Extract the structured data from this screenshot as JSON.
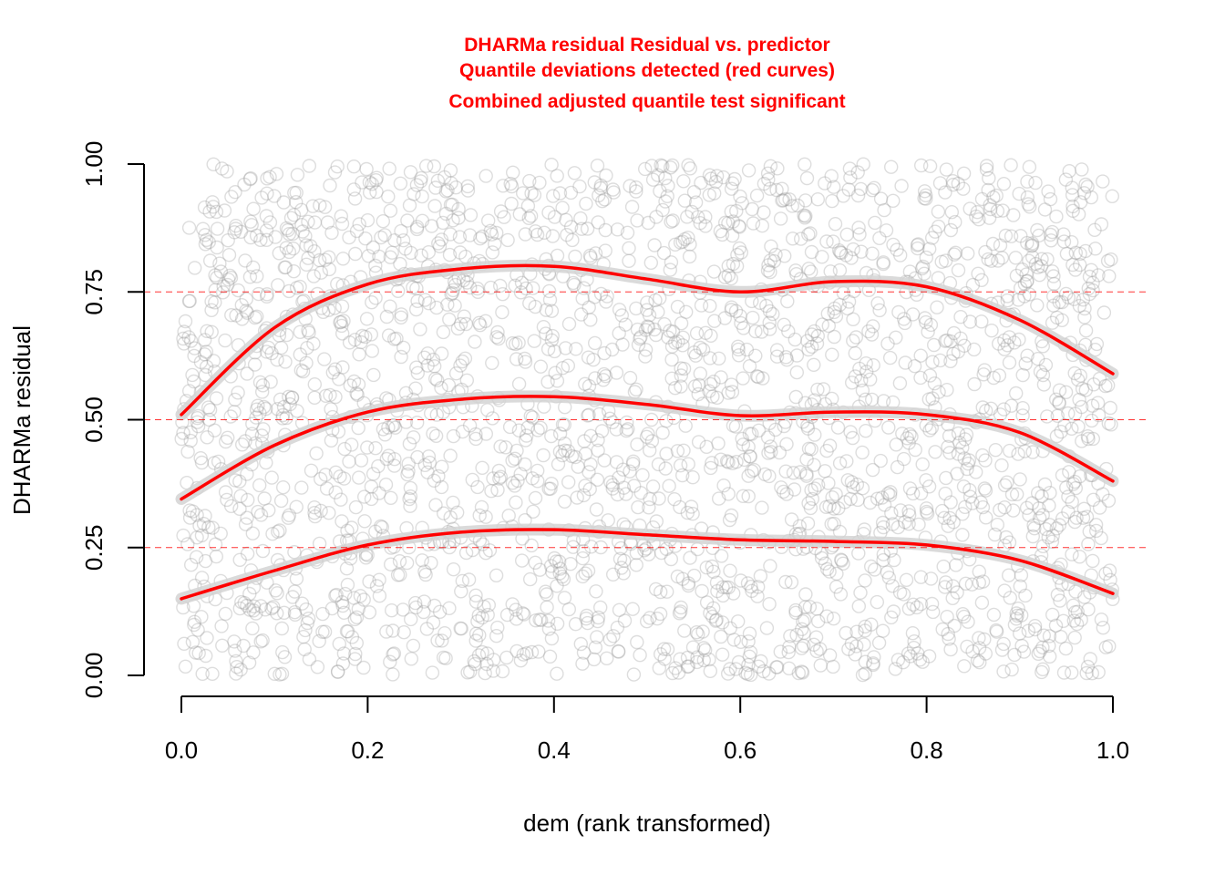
{
  "chart_data": {
    "type": "scatter",
    "title": [
      "DHARMa residual Residual vs. predictor",
      "Quantile deviations detected (red curves)",
      "Combined adjusted quantile test significant"
    ],
    "xlabel": "dem (rank transformed)",
    "ylabel": "DHARMa residual",
    "xlim": [
      0,
      1
    ],
    "ylim": [
      0,
      1
    ],
    "x_ticks": [
      0.0,
      0.2,
      0.4,
      0.6,
      0.8,
      1.0
    ],
    "x_tick_labels": [
      "0.0",
      "0.2",
      "0.4",
      "0.6",
      "0.8",
      "1.0"
    ],
    "y_ticks": [
      0.0,
      0.25,
      0.5,
      0.75,
      1.0
    ],
    "y_tick_labels": [
      "0.00",
      "0.25",
      "0.50",
      "0.75",
      "1.00"
    ],
    "reference_lines": [
      0.25,
      0.5,
      0.75
    ],
    "points_description_count": 2500,
    "quantile_curves": [
      {
        "quantile": 0.25,
        "x": [
          0.0,
          0.1,
          0.2,
          0.3,
          0.4,
          0.5,
          0.6,
          0.7,
          0.8,
          0.9,
          1.0
        ],
        "y": [
          0.15,
          0.205,
          0.255,
          0.28,
          0.285,
          0.275,
          0.265,
          0.262,
          0.255,
          0.225,
          0.16
        ]
      },
      {
        "quantile": 0.5,
        "x": [
          0.0,
          0.1,
          0.2,
          0.3,
          0.4,
          0.5,
          0.6,
          0.7,
          0.8,
          0.9,
          1.0
        ],
        "y": [
          0.345,
          0.45,
          0.515,
          0.54,
          0.545,
          0.53,
          0.508,
          0.515,
          0.51,
          0.475,
          0.38
        ]
      },
      {
        "quantile": 0.75,
        "x": [
          0.0,
          0.1,
          0.2,
          0.3,
          0.4,
          0.5,
          0.6,
          0.7,
          0.8,
          0.9,
          1.0
        ],
        "y": [
          0.51,
          0.68,
          0.765,
          0.795,
          0.8,
          0.775,
          0.75,
          0.77,
          0.76,
          0.695,
          0.59
        ]
      }
    ],
    "colors": {
      "points": "#9e9e9e",
      "curves": "#ff0000",
      "band": "#d3d3d3",
      "reference": "#ff0000",
      "title": "#ff0000"
    }
  }
}
